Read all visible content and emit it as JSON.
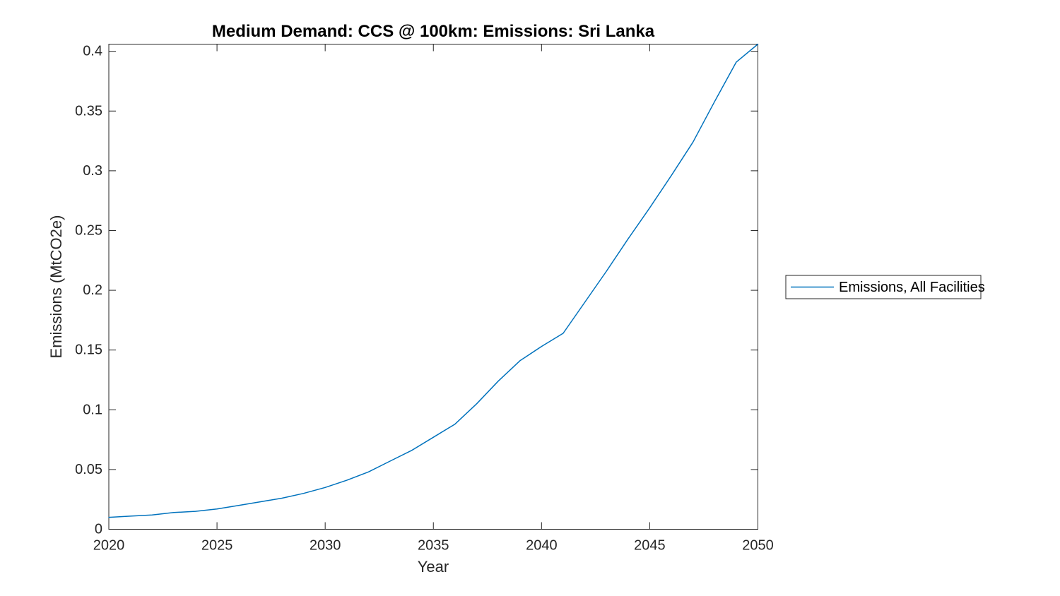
{
  "figure": {
    "background": "#ffffff"
  },
  "chart_data": {
    "type": "line",
    "title": "Medium Demand: CCS @ 100km: Emissions: Sri Lanka",
    "xlabel": "Year",
    "ylabel": "Emissions (MtCO2e)",
    "xlim": [
      2020,
      2050
    ],
    "ylim": [
      0,
      0.406
    ],
    "xtick_labels": [
      "2020",
      "2025",
      "2030",
      "2035",
      "2040",
      "2045",
      "2050"
    ],
    "ytick_labels": [
      "0",
      "0.05",
      "0.1",
      "0.15",
      "0.2",
      "0.25",
      "0.3",
      "0.35",
      "0.4"
    ],
    "grid": false,
    "box": true,
    "legend": {
      "position": "eastoutside",
      "entries": [
        "Emissions, All Facilities"
      ]
    },
    "colors": {
      "line": "#0072BD",
      "axis": "#262626",
      "title": "#000000",
      "legend_border": "#262626",
      "legend_background": "#ffffff"
    },
    "series": [
      {
        "name": "Emissions, All Facilities",
        "x": [
          2020,
          2021,
          2022,
          2023,
          2024,
          2025,
          2026,
          2027,
          2028,
          2029,
          2030,
          2031,
          2032,
          2033,
          2034,
          2035,
          2036,
          2037,
          2038,
          2039,
          2040,
          2041,
          2042,
          2043,
          2044,
          2045,
          2046,
          2047,
          2048,
          2049,
          2050
        ],
        "values": [
          0.01,
          0.011,
          0.012,
          0.014,
          0.015,
          0.017,
          0.02,
          0.023,
          0.026,
          0.03,
          0.035,
          0.041,
          0.048,
          0.057,
          0.066,
          0.077,
          0.088,
          0.105,
          0.124,
          0.141,
          0.153,
          0.164,
          0.19,
          0.216,
          0.243,
          0.269,
          0.296,
          0.324,
          0.358,
          0.391,
          0.406
        ]
      }
    ]
  }
}
